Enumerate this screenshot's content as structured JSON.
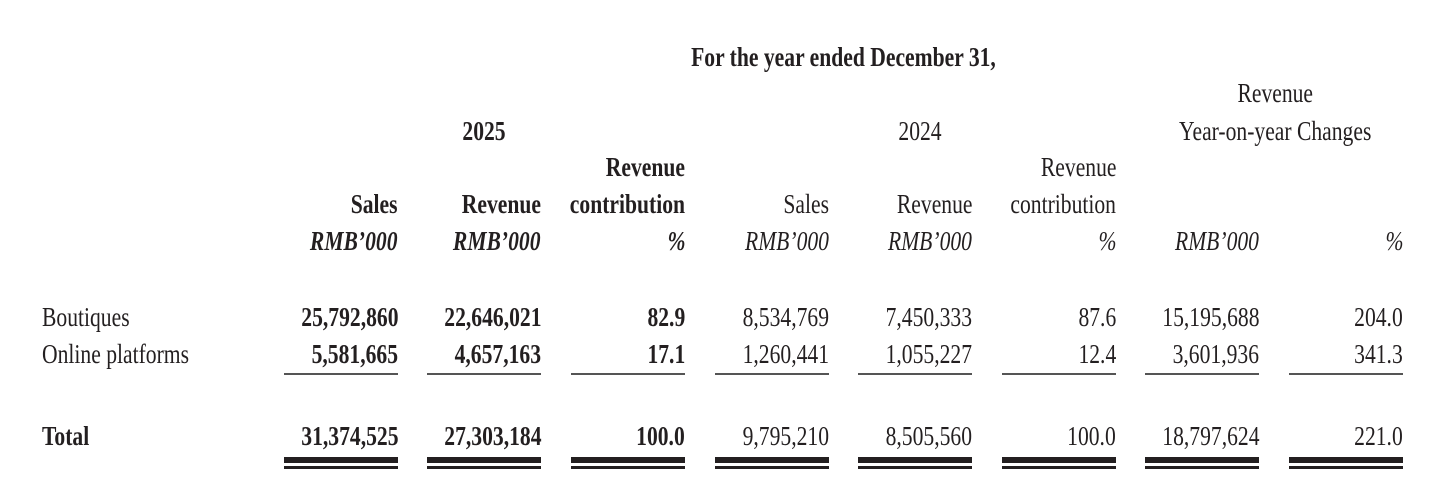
{
  "header": {
    "period": "For the year ended December 31,",
    "year_current": "2025",
    "year_prior": "2024",
    "changes_title_line1": "Revenue",
    "changes_title_line2": "Year-on-year Changes"
  },
  "columns": [
    {
      "line1": "",
      "line2": "Sales",
      "unit": "RMB’000"
    },
    {
      "line1": "",
      "line2": "Revenue",
      "unit": "RMB’000"
    },
    {
      "line1": "Revenue",
      "line2": "contribution",
      "unit": "%"
    },
    {
      "line1": "",
      "line2": "Sales",
      "unit": "RMB’000"
    },
    {
      "line1": "",
      "line2": "Revenue",
      "unit": "RMB’000"
    },
    {
      "line1": "Revenue",
      "line2": "contribution",
      "unit": "%"
    },
    {
      "line1": "",
      "line2": "",
      "unit": "RMB’000"
    },
    {
      "line1": "",
      "line2": "",
      "unit": "%"
    }
  ],
  "rows": [
    {
      "label": "Boutiques",
      "values": [
        "25,792,860",
        "22,646,021",
        "82.9",
        "8,534,769",
        "7,450,333",
        "87.6",
        "15,195,688",
        "204.0"
      ]
    },
    {
      "label": "Online platforms",
      "values": [
        "5,581,665",
        "4,657,163",
        "17.1",
        "1,260,441",
        "1,055,227",
        "12.4",
        "3,601,936",
        "341.3"
      ]
    }
  ],
  "total": {
    "label": "Total",
    "values": [
      "31,374,525",
      "27,303,184",
      "100.0",
      "9,795,210",
      "8,505,560",
      "100.0",
      "18,797,624",
      "221.0"
    ]
  }
}
